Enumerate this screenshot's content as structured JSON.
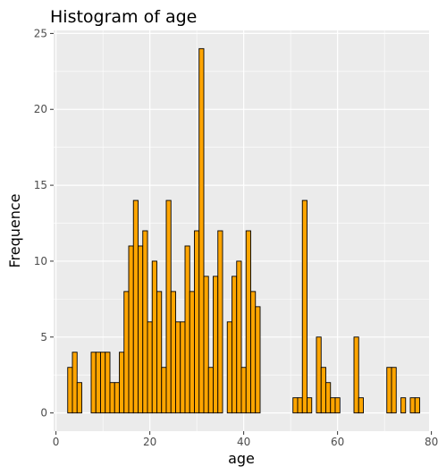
{
  "chart_data": {
    "type": "bar",
    "title": "Histogram of age",
    "xlabel": "age",
    "ylabel": "Frequence",
    "xlim": [
      -0.5,
      79.5
    ],
    "ylim": [
      -1.2,
      25.2
    ],
    "x_ticks": [
      0,
      20,
      40,
      60,
      80
    ],
    "y_ticks": [
      0,
      5,
      10,
      15,
      20,
      25
    ],
    "grid": true,
    "legend": "none",
    "bar_fill": "#FFA500",
    "bar_outline": "#000000",
    "panel_background": "#EBEBEB",
    "gridline_color": "#FFFFFF",
    "categories": [
      3,
      4,
      5,
      6,
      7,
      8,
      9,
      10,
      11,
      12,
      13,
      14,
      15,
      16,
      17,
      18,
      19,
      20,
      21,
      22,
      23,
      24,
      25,
      26,
      27,
      28,
      29,
      30,
      31,
      32,
      33,
      34,
      35,
      36,
      37,
      38,
      39,
      40,
      41,
      42,
      43,
      44,
      45,
      46,
      47,
      48,
      49,
      50,
      51,
      52,
      53,
      54,
      55,
      56,
      57,
      58,
      59,
      60,
      61,
      62,
      63,
      64,
      65,
      66,
      67,
      68,
      69,
      70,
      71,
      72,
      73,
      74,
      75,
      76,
      77
    ],
    "values": [
      3,
      4,
      2,
      0,
      0,
      4,
      4,
      4,
      4,
      2,
      2,
      4,
      8,
      11,
      14,
      11,
      12,
      6,
      10,
      8,
      3,
      14,
      8,
      6,
      6,
      11,
      8,
      12,
      24,
      9,
      3,
      9,
      12,
      0,
      6,
      9,
      10,
      3,
      12,
      8,
      7,
      0,
      0,
      0,
      0,
      0,
      0,
      0,
      1,
      1,
      14,
      1,
      0,
      5,
      3,
      2,
      1,
      1,
      0,
      0,
      0,
      5,
      1,
      0,
      0,
      0,
      0,
      0,
      3,
      3,
      0,
      1,
      0,
      1,
      1
    ]
  }
}
